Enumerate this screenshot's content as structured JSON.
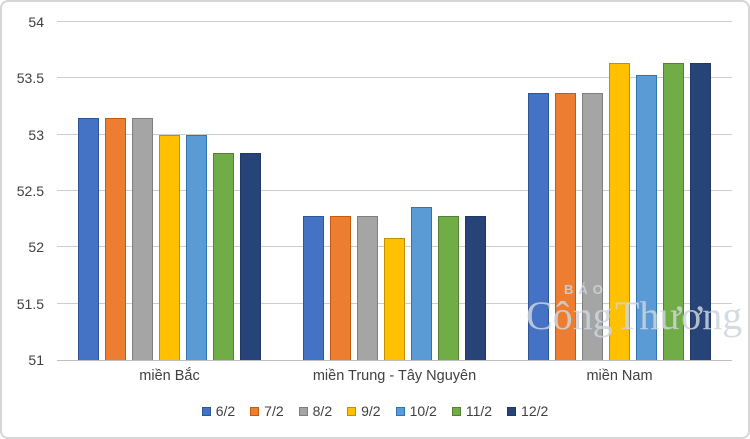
{
  "chart_data": {
    "type": "bar",
    "title": "",
    "xlabel": "",
    "ylabel": "",
    "categories": [
      "miền Bắc",
      "miền Trung - Tây Nguyên",
      "miền Nam"
    ],
    "series": [
      {
        "name": "6/2",
        "color": "#4472C4",
        "border": "#2F5597",
        "values": [
          53.15,
          52.28,
          53.37
        ]
      },
      {
        "name": "7/2",
        "color": "#ED7D31",
        "border": "#C55A11",
        "values": [
          53.15,
          52.28,
          53.37
        ]
      },
      {
        "name": "8/2",
        "color": "#A5A5A5",
        "border": "#7F7F7F",
        "values": [
          53.15,
          52.28,
          53.37
        ]
      },
      {
        "name": "9/2",
        "color": "#FFC000",
        "border": "#BF9000",
        "values": [
          53.0,
          52.08,
          53.64
        ]
      },
      {
        "name": "10/2",
        "color": "#5B9BD5",
        "border": "#2E75B6",
        "values": [
          53.0,
          52.36,
          53.53
        ]
      },
      {
        "name": "11/2",
        "color": "#70AD47",
        "border": "#538135",
        "values": [
          52.84,
          52.28,
          53.64
        ]
      },
      {
        "name": "12/2",
        "color": "#264478",
        "border": "#1F3864",
        "values": [
          52.84,
          52.28,
          53.64
        ]
      }
    ],
    "ylim": [
      51,
      54
    ],
    "yticks": [
      51,
      51.5,
      52,
      52.5,
      53,
      53.5,
      54
    ],
    "grid": true,
    "legend_position": "bottom"
  },
  "watermark": {
    "line1": "BÁO",
    "line2": "Công Thương"
  }
}
